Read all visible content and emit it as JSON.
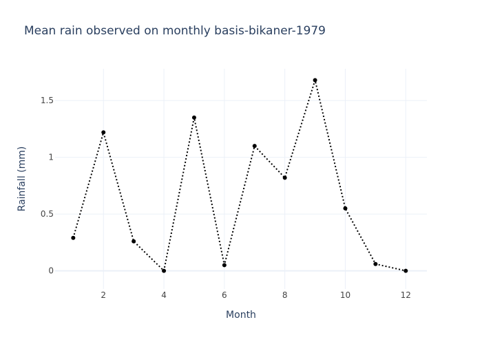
{
  "chart_data": {
    "type": "line",
    "title": "Mean rain observed on monthly basis-bikaner-1979",
    "xlabel": "Month",
    "ylabel": "Rainfall (mm)",
    "x": [
      1,
      2,
      3,
      4,
      5,
      6,
      7,
      8,
      9,
      10,
      11,
      12
    ],
    "series": [
      {
        "values": [
          0.29,
          1.22,
          0.26,
          0.0,
          1.35,
          0.05,
          1.1,
          0.82,
          1.68,
          0.55,
          0.06,
          0.0
        ]
      }
    ],
    "xticks": [
      2,
      4,
      6,
      8,
      10,
      12
    ],
    "xtick_labels": [
      "2",
      "4",
      "6",
      "8",
      "10",
      "12"
    ],
    "yticks": [
      0,
      0.5,
      1,
      1.5
    ],
    "ytick_labels": [
      "0",
      "0.5",
      "1",
      "1.5"
    ],
    "xlim": [
      0.4,
      12.7
    ],
    "ylim": [
      -0.16,
      1.78
    ],
    "line_style": "dotted",
    "markers": true,
    "grid": true,
    "colors": {
      "line": "#000000",
      "marker": "#000000",
      "grid": "#ebf0f8",
      "text": "#2a3f5f",
      "tick_text": "#444444"
    }
  }
}
